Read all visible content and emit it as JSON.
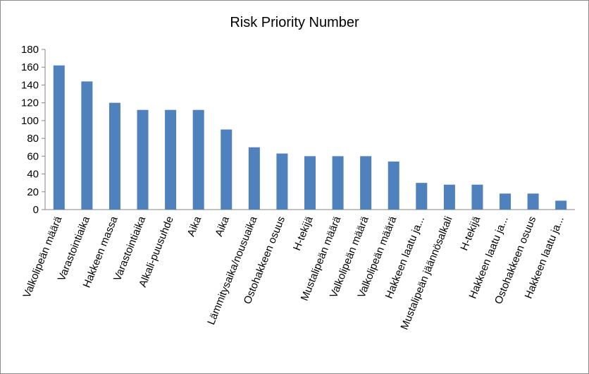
{
  "chart_data": {
    "type": "bar",
    "title": "Risk Priority Number",
    "xlabel": "",
    "ylabel": "",
    "ylim": [
      0,
      180
    ],
    "yticks": [
      0,
      20,
      40,
      60,
      80,
      100,
      120,
      140,
      160,
      180
    ],
    "grid": false,
    "legend": "none",
    "bar_color": "#4F81BD",
    "categories": [
      "Valkolipeän määrä",
      "Varastointiaika",
      "Hakkeen massa",
      "Varastointiaika",
      "Alkali-puusuhde",
      "Aika",
      "Aika",
      "Lämmitysaika/nousuaika",
      "Ostohakkeen osuus",
      "H-tekijä",
      "Mustalipeän määrä",
      "Valkolipeän määrä",
      "Valkolipeän määrä",
      "Hakkeen laatu ja...",
      "Mustalipeän jäännösalkali",
      "H-tekijä",
      "Hakkeen laatu ja...",
      "Ostohakkeen osuus",
      "Hakkeen laatu ja..."
    ],
    "values": [
      162,
      144,
      120,
      112,
      112,
      112,
      90,
      70,
      63,
      60,
      60,
      60,
      54,
      30,
      28,
      28,
      18,
      18,
      10
    ]
  }
}
